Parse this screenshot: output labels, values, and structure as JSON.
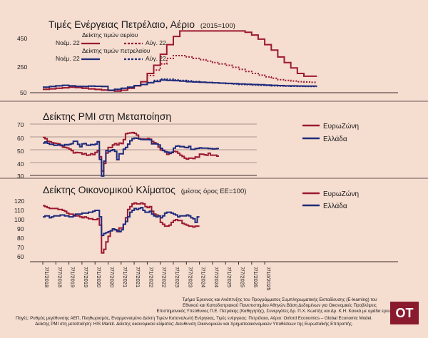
{
  "colors": {
    "background": "#f5ddd0",
    "eurozone": "#9c1930",
    "greece": "#1f2a7a",
    "axis": "#3a2a2a",
    "logo_bg": "#8a1a2e"
  },
  "panel1": {
    "title": "Τιμές Ενέργειας Πετρέλαιο, Αέριο",
    "title_suffix": "(2015=100)",
    "legend": {
      "gas_label": "Δείκτης τιμών αερίου",
      "oil_label": "Δείκτης τιμών πετρελαίου",
      "nov22": "Νοέμ. 22",
      "aug22": "Αύγ. 22"
    },
    "yticks": [
      "450",
      "250",
      "50"
    ]
  },
  "panel2": {
    "title": "Δείκτης PMI στη Μεταποίηση",
    "legend": {
      "eurozone": "ΕυρωΖώνη",
      "greece": "Ελλάδα"
    },
    "yticks": [
      "70",
      "60",
      "50",
      "40",
      "30"
    ]
  },
  "panel3": {
    "title": "Δείκτης Οικονομικού Κλίματος",
    "title_suffix": "(μέσος όρος ΕΕ=100)",
    "legend": {
      "eurozone": "ΕυρωΖώνη",
      "greece": "Ελλάδα"
    },
    "yticks": [
      "120",
      "110",
      "100",
      "90",
      "80",
      "70",
      "60"
    ]
  },
  "xticks": [
    "7/1/2018",
    "7/7/2018",
    "7/1/2019",
    "7/7/2019",
    "7/1/2020",
    "7/7/2020",
    "7/1/2021",
    "7/7/2021",
    "7/1/2022",
    "7/7/2022",
    "7/1/2023",
    "7/7/2023",
    "7/1/2024",
    "7/7/2024",
    "7/1/2025",
    "7/7/2025",
    "7/1/2026",
    "7/10/2025"
  ],
  "footer": [
    "Τμήμα Έρευνας και Ανάπτυξης του Προγράμματος Συμπληρωματικής Εκπαίδευσης (E-learning) του",
    "Εθνικού και Καποδιστριακού Πανεπιστημίου Αθηνών.Βάση Δεδομένων για Οικονομικές Προβλέψεις",
    "Επιστημονικός Υπεύθυνος Π.Ε. Πετράκης (Καθηγητής), Συνεργάτες Δρ. Π.Χ. Κωστής και Δρ. Κ.Η. Καυκά με ομάδα ερευνητών",
    "Πηγές: Ρυθμός μεγέθυνσης ΑΕΠ, Πληθωρισμός, Εναρμονισμένο Δείκτη Τιμών Καταναλωτή Ενέργειας, Τιμές ενέργειας: Πετρέλαιο, Αέριο: Oxford Economics – Global Economic Model.",
    "Δείκτης PMI στη μεταποίηση: HIS Markit. Δείκτης οικονομικού κλίματος: Διευθυνση Οικονομικών και Χρηματοοικονομικών Υποθέσεων της Ευρωπαϊκής Επιτροπής."
  ],
  "logo": "OT",
  "chart_data": [
    {
      "type": "line",
      "title": "Τιμές Ενέργειας Πετρέλαιο, Αέριο (2015=100)",
      "ylim": [
        50,
        500
      ],
      "x_start": "2018-01",
      "x_step": "quarter",
      "series": [
        {
          "name": "Δείκτης τιμών αερίου Νοέμ. 22",
          "style": "solid",
          "color": "#9c1930",
          "values": [
            75,
            78,
            82,
            86,
            90,
            88,
            82,
            78,
            74,
            70,
            66,
            62,
            68,
            82,
            100,
            130,
            190,
            250,
            330,
            400,
            460,
            500,
            500,
            500,
            500,
            500,
            500,
            500,
            500,
            500,
            500,
            490,
            470,
            440,
            400,
            360,
            310,
            270,
            230,
            190,
            170,
            170
          ]
        },
        {
          "name": "Δείκτης τιμών αερίου Αύγ. 22",
          "style": "dotted",
          "color": "#9c1930",
          "values": [
            75,
            78,
            82,
            86,
            90,
            88,
            82,
            78,
            74,
            70,
            66,
            62,
            68,
            82,
            100,
            130,
            175,
            215,
            260,
            300,
            320,
            320,
            310,
            300,
            290,
            280,
            270,
            260,
            250,
            235,
            220,
            205,
            190,
            178,
            165,
            155,
            145,
            140,
            135,
            130,
            128,
            126
          ]
        },
        {
          "name": "Δείκτης τιμών πετρελαίου Νοέμ. 22",
          "style": "solid",
          "color": "#1f2a7a",
          "values": [
            90,
            95,
            100,
            104,
            100,
            96,
            95,
            98,
            97,
            95,
            68,
            75,
            82,
            90,
            102,
            110,
            122,
            132,
            142,
            140,
            138,
            134,
            130,
            128,
            126,
            124,
            122,
            120,
            118,
            116,
            114,
            112,
            110,
            108,
            106,
            104,
            102,
            100,
            100,
            99,
            98,
            98
          ]
        },
        {
          "name": "Δείκτης τιμών πετρελαίου Αύγ. 22",
          "style": "dotted",
          "color": "#1f2a7a",
          "values": [
            90,
            95,
            100,
            104,
            100,
            96,
            95,
            98,
            97,
            95,
            68,
            75,
            82,
            90,
            102,
            110,
            125,
            140,
            150,
            148,
            144,
            140,
            136,
            132,
            128,
            125,
            122,
            119,
            116,
            113,
            110,
            108,
            106,
            104,
            102,
            100,
            99,
            98,
            97,
            96,
            95,
            95
          ]
        }
      ]
    },
    {
      "type": "line",
      "title": "Δείκτης PMI στη Μεταποίηση",
      "ylim": [
        30,
        70
      ],
      "x_start": "2018-01",
      "x_step": "month",
      "series": [
        {
          "name": "ΕυρωΖώνη",
          "color": "#9c1930",
          "values": [
            59.6,
            58.6,
            56.6,
            56.2,
            55.5,
            55.1,
            54.9,
            54.6,
            53.2,
            52.0,
            51.8,
            51.4,
            50.5,
            49.3,
            47.5,
            47.9,
            47.7,
            47.6,
            46.5,
            47.0,
            45.7,
            45.9,
            46.9,
            46.3,
            47.9,
            49.2,
            44.5,
            33.4,
            39.4,
            47.4,
            51.8,
            51.7,
            53.7,
            54.8,
            53.8,
            55.2,
            54.8,
            57.9,
            62.5,
            62.9,
            63.1,
            63.4,
            62.8,
            61.4,
            58.6,
            58.3,
            58.4,
            58.0,
            58.7,
            58.2,
            56.5,
            55.5,
            54.6,
            52.1,
            49.8,
            49.6,
            48.4,
            46.4,
            47.1,
            47.8,
            48.8,
            48.5,
            47.3,
            45.8,
            44.8,
            43.4,
            42.7,
            43.5,
            43.4,
            43.1,
            44.4,
            44.2,
            46.6,
            46.5,
            46.1,
            45.7,
            47.3,
            45.8,
            45.8,
            45.8,
            45.0
          ]
        },
        {
          "name": "Ελλάδα",
          "color": "#1f2a7a",
          "values": [
            55.2,
            56.1,
            55.0,
            54.2,
            54.2,
            53.5,
            53.5,
            53.9,
            53.6,
            53.1,
            54.0,
            53.7,
            54.2,
            54.7,
            56.6,
            56.6,
            54.2,
            52.4,
            54.6,
            54.9,
            53.6,
            53.5,
            54.1,
            53.9,
            54.4,
            56.2,
            42.5,
            29.5,
            41.1,
            49.4,
            48.6,
            49.4,
            50.0,
            48.7,
            42.3,
            46.9,
            46.8,
            50.4,
            51.8,
            54.4,
            57.0,
            58.6,
            59.0,
            58.9,
            58.4,
            58.0,
            57.9,
            57.9,
            57.9,
            57.8,
            54.6,
            54.6,
            54.6,
            53.8,
            51.1,
            49.4,
            48.5,
            48.1,
            47.3,
            48.1,
            51.3,
            52.8,
            53.0,
            52.4,
            52.5,
            51.8,
            51.6,
            52.6,
            50.3,
            50.3,
            50.9,
            51.1,
            51.5,
            51.2,
            51.2,
            51.2,
            51.0,
            50.9,
            50.6,
            50.8,
            51.0
          ]
        }
      ]
    },
    {
      "type": "line",
      "title": "Δείκτης Οικονομικού Κλίματος (μέσος όρος ΕΕ=100)",
      "ylim": [
        60,
        125
      ],
      "x_start": "2018-01",
      "x_step": "month",
      "series": [
        {
          "name": "ΕυρωΖώνη",
          "color": "#9c1930",
          "values": [
            115,
            114,
            113,
            112,
            112,
            112,
            112,
            111,
            111,
            110,
            109,
            107,
            106,
            106,
            105,
            104,
            104,
            103,
            102,
            103,
            102,
            101,
            101,
            100,
            100,
            101,
            94,
            64,
            68,
            76,
            82,
            88,
            90,
            89,
            87,
            91,
            91,
            95,
            102,
            111,
            114,
            117,
            118,
            117,
            117,
            118,
            117,
            114,
            113,
            114,
            109,
            106,
            105,
            104,
            97,
            95,
            93,
            93,
            94,
            97,
            99,
            100,
            99,
            99,
            96,
            95,
            94,
            93,
            93,
            92,
            93,
            93
          ]
        },
        {
          "name": "Ελλάδα",
          "color": "#1f2a7a",
          "values": [
            103,
            104,
            104,
            102,
            103,
            104,
            104,
            104,
            105,
            105,
            104,
            104,
            103,
            103,
            104,
            106,
            106,
            106,
            107,
            107,
            107,
            108,
            108,
            109,
            110,
            110,
            103,
            83,
            85,
            86,
            87,
            88,
            90,
            89,
            88,
            87,
            89,
            95,
            98,
            103,
            108,
            110,
            112,
            111,
            112,
            113,
            110,
            108,
            108,
            109,
            106,
            104,
            103,
            104,
            102,
            104,
            107,
            108,
            108,
            107,
            106,
            105,
            103,
            104,
            104,
            104,
            105,
            104,
            102,
            101,
            97,
            103
          ]
        }
      ]
    }
  ]
}
